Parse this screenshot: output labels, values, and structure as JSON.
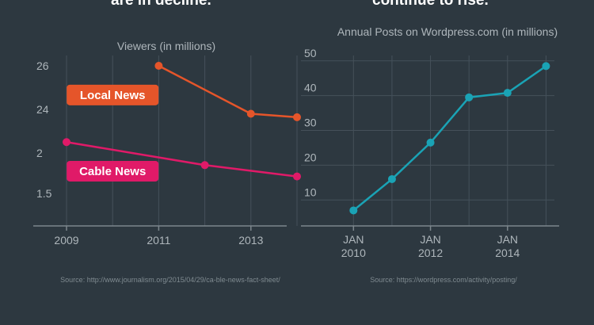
{
  "header": {
    "left_fragment": "are in decline.",
    "right_fragment": "continue to rise."
  },
  "chart_data": [
    {
      "type": "line",
      "title": "Viewers (in millions)",
      "y_axis_note": "Axis labels as shown (26, 24, 2, 1.5); the axis is not linear.",
      "yticks": [
        {
          "label": "26",
          "pos": 0
        },
        {
          "label": "24",
          "pos": 1
        },
        {
          "label": "2",
          "pos": 2
        },
        {
          "label": "1.5",
          "pos": 3
        }
      ],
      "xlim": [
        2009,
        2014
      ],
      "xticks": [
        2009,
        2011,
        2013
      ],
      "grid": "vertical",
      "series": [
        {
          "name": "Local News",
          "color": "#e5552a",
          "points": [
            {
              "x": 2011,
              "tickpos": 0
            },
            {
              "x": 2013,
              "tickpos": 1.1
            },
            {
              "x": 2014,
              "tickpos": 1.18
            }
          ],
          "label_at": {
            "x": 2010,
            "tickpos": 0.67
          }
        },
        {
          "name": "Cable News",
          "color": "#e01a68",
          "points": [
            {
              "x": 2009,
              "tickpos": 1.75
            },
            {
              "x": 2012,
              "tickpos": 2.3
            },
            {
              "x": 2014,
              "tickpos": 2.58
            }
          ],
          "label_at": {
            "x": 2010,
            "tickpos": 2.45
          }
        }
      ],
      "source": "Source: http://www.journalism.org/2015/04/29/ca-ble-news-fact-sheet/"
    },
    {
      "type": "line",
      "title": "Annual Posts on Wordpress.com (in millions)",
      "yticks": [
        10,
        20,
        30,
        40,
        50
      ],
      "ylim": [
        3,
        52
      ],
      "xlim": [
        2009.5,
        2015.3
      ],
      "xticks": [
        {
          "x": 2010,
          "label": "JAN 2010"
        },
        {
          "x": 2012,
          "label": "JAN 2012"
        },
        {
          "x": 2014,
          "label": "JAN 2014"
        }
      ],
      "grid": "both",
      "series": [
        {
          "color": "#1aa3b5",
          "x": [
            2010,
            2011,
            2012,
            2013,
            2014,
            2015
          ],
          "values": [
            7,
            16,
            26.5,
            39.5,
            40.8,
            48.5
          ]
        }
      ],
      "source": "Source: https://wordpress.com/activity/posting/"
    }
  ]
}
